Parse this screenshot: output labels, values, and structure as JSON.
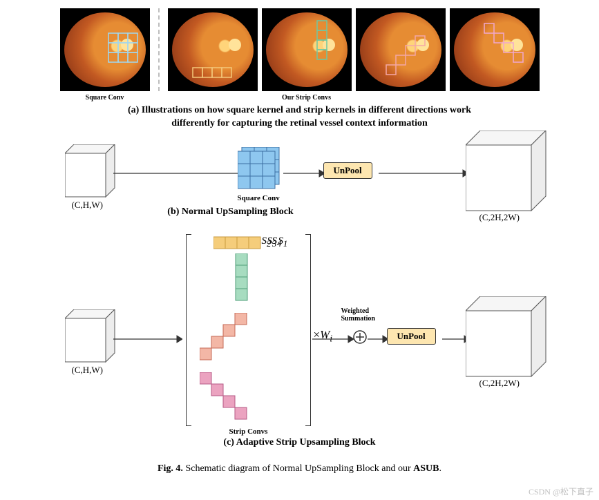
{
  "rowA": {
    "label_left": "Square Conv",
    "label_right": "Our Strip Convs",
    "caption": "(a) Illustrations on how square kernel and strip kernels in different directions work\ndifferently for capturing the retinal vessel context information",
    "colors": {
      "eye_background": "#000000",
      "square_kernel_stroke": "#9fd7f0",
      "strip_h_stroke": "#f4c87a",
      "strip_v_stroke": "#6fc7a2",
      "strip_diag1_stroke": "#f4a7a7",
      "strip_diag2_stroke": "#f0a7cf",
      "optic_disc": "#ffe39a"
    },
    "kernel_cell": 14,
    "kernel_len": 4
  },
  "sectionB": {
    "in_label": "(C,H,W)",
    "out_label": "(C,2H,2W)",
    "conv_label": "Square Conv",
    "unpool": "UnPool",
    "caption": "(b) Normal UpSampling Block",
    "colors": {
      "cube_face": "#ffffff",
      "cube_stroke": "#555555",
      "conv_fill": "#8ec7ef",
      "conv_stroke": "#3c6fa3",
      "unpool_fill": "#fde6b0",
      "arrow": "#333333"
    },
    "grid": 3,
    "cell": 18
  },
  "sectionC": {
    "in_label": "(C,H,W)",
    "out_label": "(C,2H,2W)",
    "unpool": "UnPool",
    "weighted_label": "Weighted\nSummation",
    "weight_sym": "×W",
    "weight_sub": "i",
    "strip_label": "Strip Convs",
    "caption": "(c) Adaptive Strip Upsampling Block",
    "strips": [
      {
        "name": "S1",
        "sub": "1",
        "type": "h",
        "cells": 4,
        "fill": "#f5cd7b",
        "stroke": "#c99a3e"
      },
      {
        "name": "S2",
        "sub": "2",
        "type": "v",
        "cells": 4,
        "fill": "#a7dcc0",
        "stroke": "#4f9e78"
      },
      {
        "name": "S3",
        "sub": "3",
        "type": "d1",
        "cells": 4,
        "fill": "#f3b7a6",
        "stroke": "#c46a55"
      },
      {
        "name": "S4",
        "sub": "4",
        "type": "d2",
        "cells": 4,
        "fill": "#eba3c0",
        "stroke": "#b55a85"
      }
    ],
    "cell": 17,
    "colors": {
      "unpool_fill": "#fde6b0",
      "bracket": "#333333",
      "plus_circle": "#333333"
    }
  },
  "figure_caption": "Fig. 4. Schematic diagram of Normal UpSampling Block and our ASUB.",
  "figure_bold_parts": [
    "Fig. 4.",
    "ASUB"
  ],
  "watermark": "CSDN @松下直子",
  "texts": {}
}
